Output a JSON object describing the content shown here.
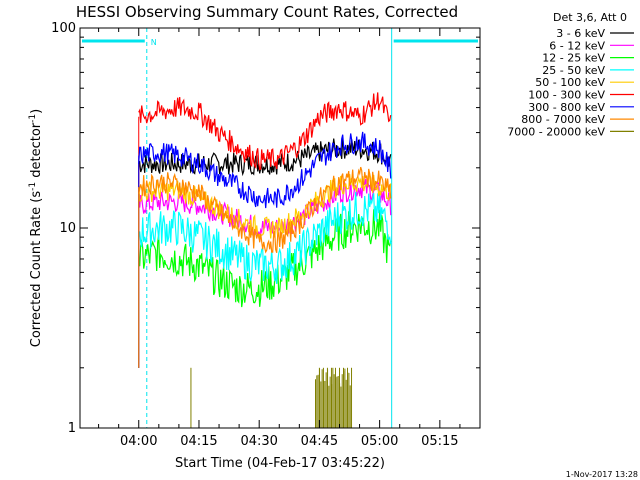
{
  "title": "HESSI Observing Summary Count Rates, Corrected",
  "footer_date": "1-Nov-2017 13:28",
  "legend_header": "Det 3,6, Att 0",
  "chart_data": {
    "type": "line",
    "title": "HESSI Observing Summary Count Rates, Corrected",
    "xlabel": "Start Time (04-Feb-17 03:45:22)",
    "ylabel": "Corrected Count Rate (s⁻¹ detector⁻¹)",
    "ylabel_main": "Corrected Count Rate (s",
    "ylabel_sup1": "-1",
    "ylabel_mid": " detector",
    "ylabel_sup2": "-1",
    "ylabel_end": ")",
    "yscale": "log",
    "ylim": [
      1,
      100
    ],
    "xlim": [
      "03:45:22",
      "05:25:00"
    ],
    "x_ticks": [
      "04:00",
      "04:15",
      "04:30",
      "04:45",
      "05:00",
      "05:15"
    ],
    "y_ticks": [
      "1",
      "10",
      "100"
    ],
    "legend_position": "outside-right",
    "annotations": [
      {
        "text": "N",
        "at": "04:01"
      }
    ],
    "night_intervals": [
      [
        "03:45:22",
        "04:02"
      ],
      [
        "05:03",
        "05:25"
      ]
    ],
    "series": [
      {
        "name": "3 - 6 keV",
        "color": "#000000",
        "x": [
          "04:00",
          "04:05",
          "04:10",
          "04:15",
          "04:20",
          "04:25",
          "04:30",
          "04:35",
          "04:40",
          "04:45",
          "04:50",
          "04:55",
          "05:00",
          "05:03"
        ],
        "values": [
          21,
          21,
          21,
          21,
          21,
          21,
          21,
          21,
          22,
          24,
          25,
          25,
          24,
          21
        ]
      },
      {
        "name": "6 - 12 keV",
        "color": "#ff00ff",
        "x": [
          "04:00",
          "04:05",
          "04:10",
          "04:15",
          "04:20",
          "04:25",
          "04:30",
          "04:35",
          "04:40",
          "04:45",
          "04:50",
          "04:55",
          "05:00",
          "05:03"
        ],
        "values": [
          13,
          13.5,
          13.5,
          13,
          12,
          11,
          10,
          10,
          11,
          13,
          15,
          16,
          15,
          13
        ]
      },
      {
        "name": "12 - 25 keV",
        "color": "#00ff00",
        "x": [
          "04:00",
          "04:05",
          "04:10",
          "04:15",
          "04:20",
          "04:25",
          "04:30",
          "04:35",
          "04:40",
          "04:45",
          "04:50",
          "04:55",
          "05:00",
          "05:03"
        ],
        "values": [
          7,
          7.5,
          7,
          6.5,
          5.5,
          5,
          5,
          5.5,
          6.5,
          8,
          9.5,
          10.5,
          10,
          7
        ]
      },
      {
        "name": "25 - 50 keV",
        "color": "#00ffff",
        "x": [
          "04:00",
          "04:05",
          "04:10",
          "04:15",
          "04:20",
          "04:25",
          "04:30",
          "04:35",
          "04:40",
          "04:45",
          "04:50",
          "04:55",
          "05:00",
          "05:03"
        ],
        "values": [
          9.5,
          10,
          10,
          9,
          8,
          7,
          6.5,
          6.5,
          7.5,
          9.5,
          11.5,
          12.5,
          12,
          10
        ]
      },
      {
        "name": "50 - 100 keV",
        "color": "#ffcc00",
        "x": [
          "04:00",
          "04:05",
          "04:10",
          "04:15",
          "04:20",
          "04:25",
          "04:30",
          "04:35",
          "04:40",
          "04:45",
          "04:50",
          "04:55",
          "05:00",
          "05:03"
        ],
        "values": [
          15,
          15.5,
          15.5,
          14,
          12.5,
          11,
          10,
          10,
          11.5,
          14,
          16.5,
          17,
          16,
          15
        ]
      },
      {
        "name": "100 - 300 keV",
        "color": "#ff0000",
        "x": [
          "04:00",
          "04:05",
          "04:10",
          "04:15",
          "04:20",
          "04:25",
          "04:30",
          "04:35",
          "04:40",
          "04:45",
          "04:50",
          "04:55",
          "05:00",
          "05:03"
        ],
        "values": [
          36,
          38,
          40,
          38,
          30,
          25,
          22,
          22,
          26,
          36,
          40,
          36,
          44,
          32
        ]
      },
      {
        "name": "300 - 800 keV",
        "color": "#0000ff",
        "x": [
          "04:00",
          "04:05",
          "04:10",
          "04:15",
          "04:20",
          "04:25",
          "04:30",
          "04:35",
          "04:40",
          "04:45",
          "04:50",
          "04:55",
          "05:00",
          "05:03"
        ],
        "values": [
          23,
          24,
          23,
          21,
          18,
          16,
          14,
          14,
          17,
          22,
          26,
          27,
          25,
          19
        ]
      },
      {
        "name": "800 - 7000 keV",
        "color": "#ff8800",
        "x": [
          "04:00",
          "04:05",
          "04:10",
          "04:15",
          "04:20",
          "04:25",
          "04:30",
          "04:35",
          "04:40",
          "04:45",
          "04:50",
          "04:55",
          "05:00",
          "05:03"
        ],
        "values": [
          16,
          17,
          16.5,
          15,
          12,
          10,
          8.5,
          8.5,
          10.5,
          14,
          17,
          18,
          17,
          15
        ]
      },
      {
        "name": "7000 - 20000 keV",
        "color": "#808000",
        "x": [
          "04:13",
          "04:45",
          "04:46",
          "04:47",
          "04:48",
          "04:49",
          "04:50",
          "04:51",
          "04:52",
          "04:53"
        ],
        "values": [
          2,
          2,
          2,
          2,
          2,
          2,
          2,
          2,
          2,
          2
        ]
      }
    ]
  }
}
